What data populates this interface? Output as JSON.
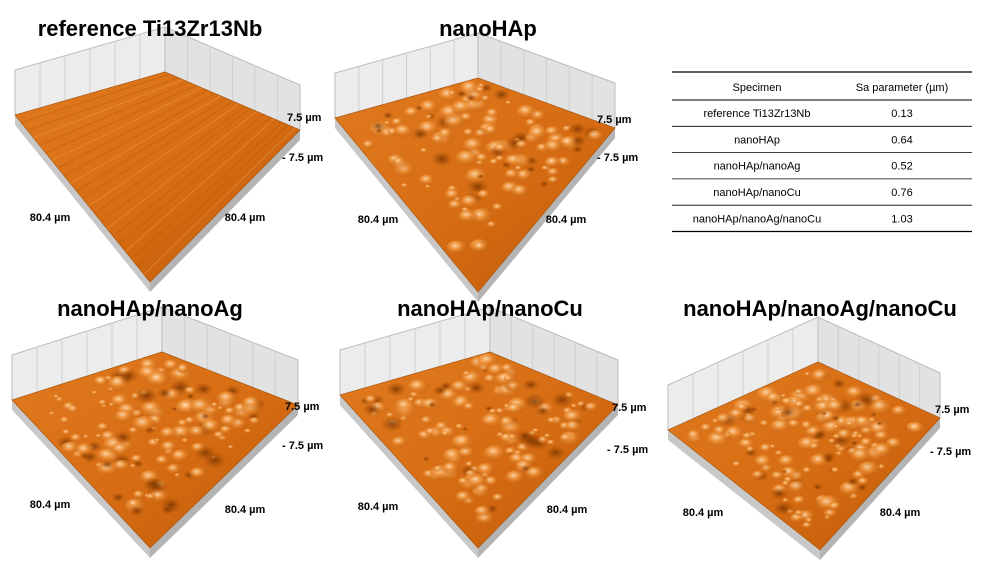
{
  "panels": [
    {
      "title": "reference Ti13Zr13Nb",
      "z_top": "7.5 µm",
      "z_bottom": "- 7.5 µm",
      "x_label": "80.4 µm",
      "y_label": "80.4 µm"
    },
    {
      "title": "nanoHAp",
      "z_top": "7.5 µm",
      "z_bottom": "- 7.5 µm",
      "x_label": "80.4 µm",
      "y_label": "80.4 µm"
    },
    {
      "title": "nanoHAp/nanoAg",
      "z_top": "7.5 µm",
      "z_bottom": "- 7.5 µm",
      "x_label": "80.4 µm",
      "y_label": "80.4 µm"
    },
    {
      "title": "nanoHAp/nanoCu",
      "z_top": "7.5 µm",
      "z_bottom": "- 7.5 µm",
      "x_label": "80.4 µm",
      "y_label": "80.4 µm"
    },
    {
      "title": "nanoHAp/nanoAg/nanoCu",
      "z_top": "7.5 µm",
      "z_bottom": "- 7.5 µm",
      "x_label": "80.4 µm",
      "y_label": "80.4 µm"
    }
  ],
  "table": {
    "header": [
      "Specimen",
      "Sa parameter (µm)"
    ],
    "rows": [
      [
        "reference Ti13Zr13Nb",
        0.13
      ],
      [
        "nanoHAp",
        0.64
      ],
      [
        "nanoHAp/nanoAg",
        0.52
      ],
      [
        "nanoHAp/nanoCu",
        0.76
      ],
      [
        "nanoHAp/nanoAg/nanoCu",
        1.03
      ]
    ]
  }
}
